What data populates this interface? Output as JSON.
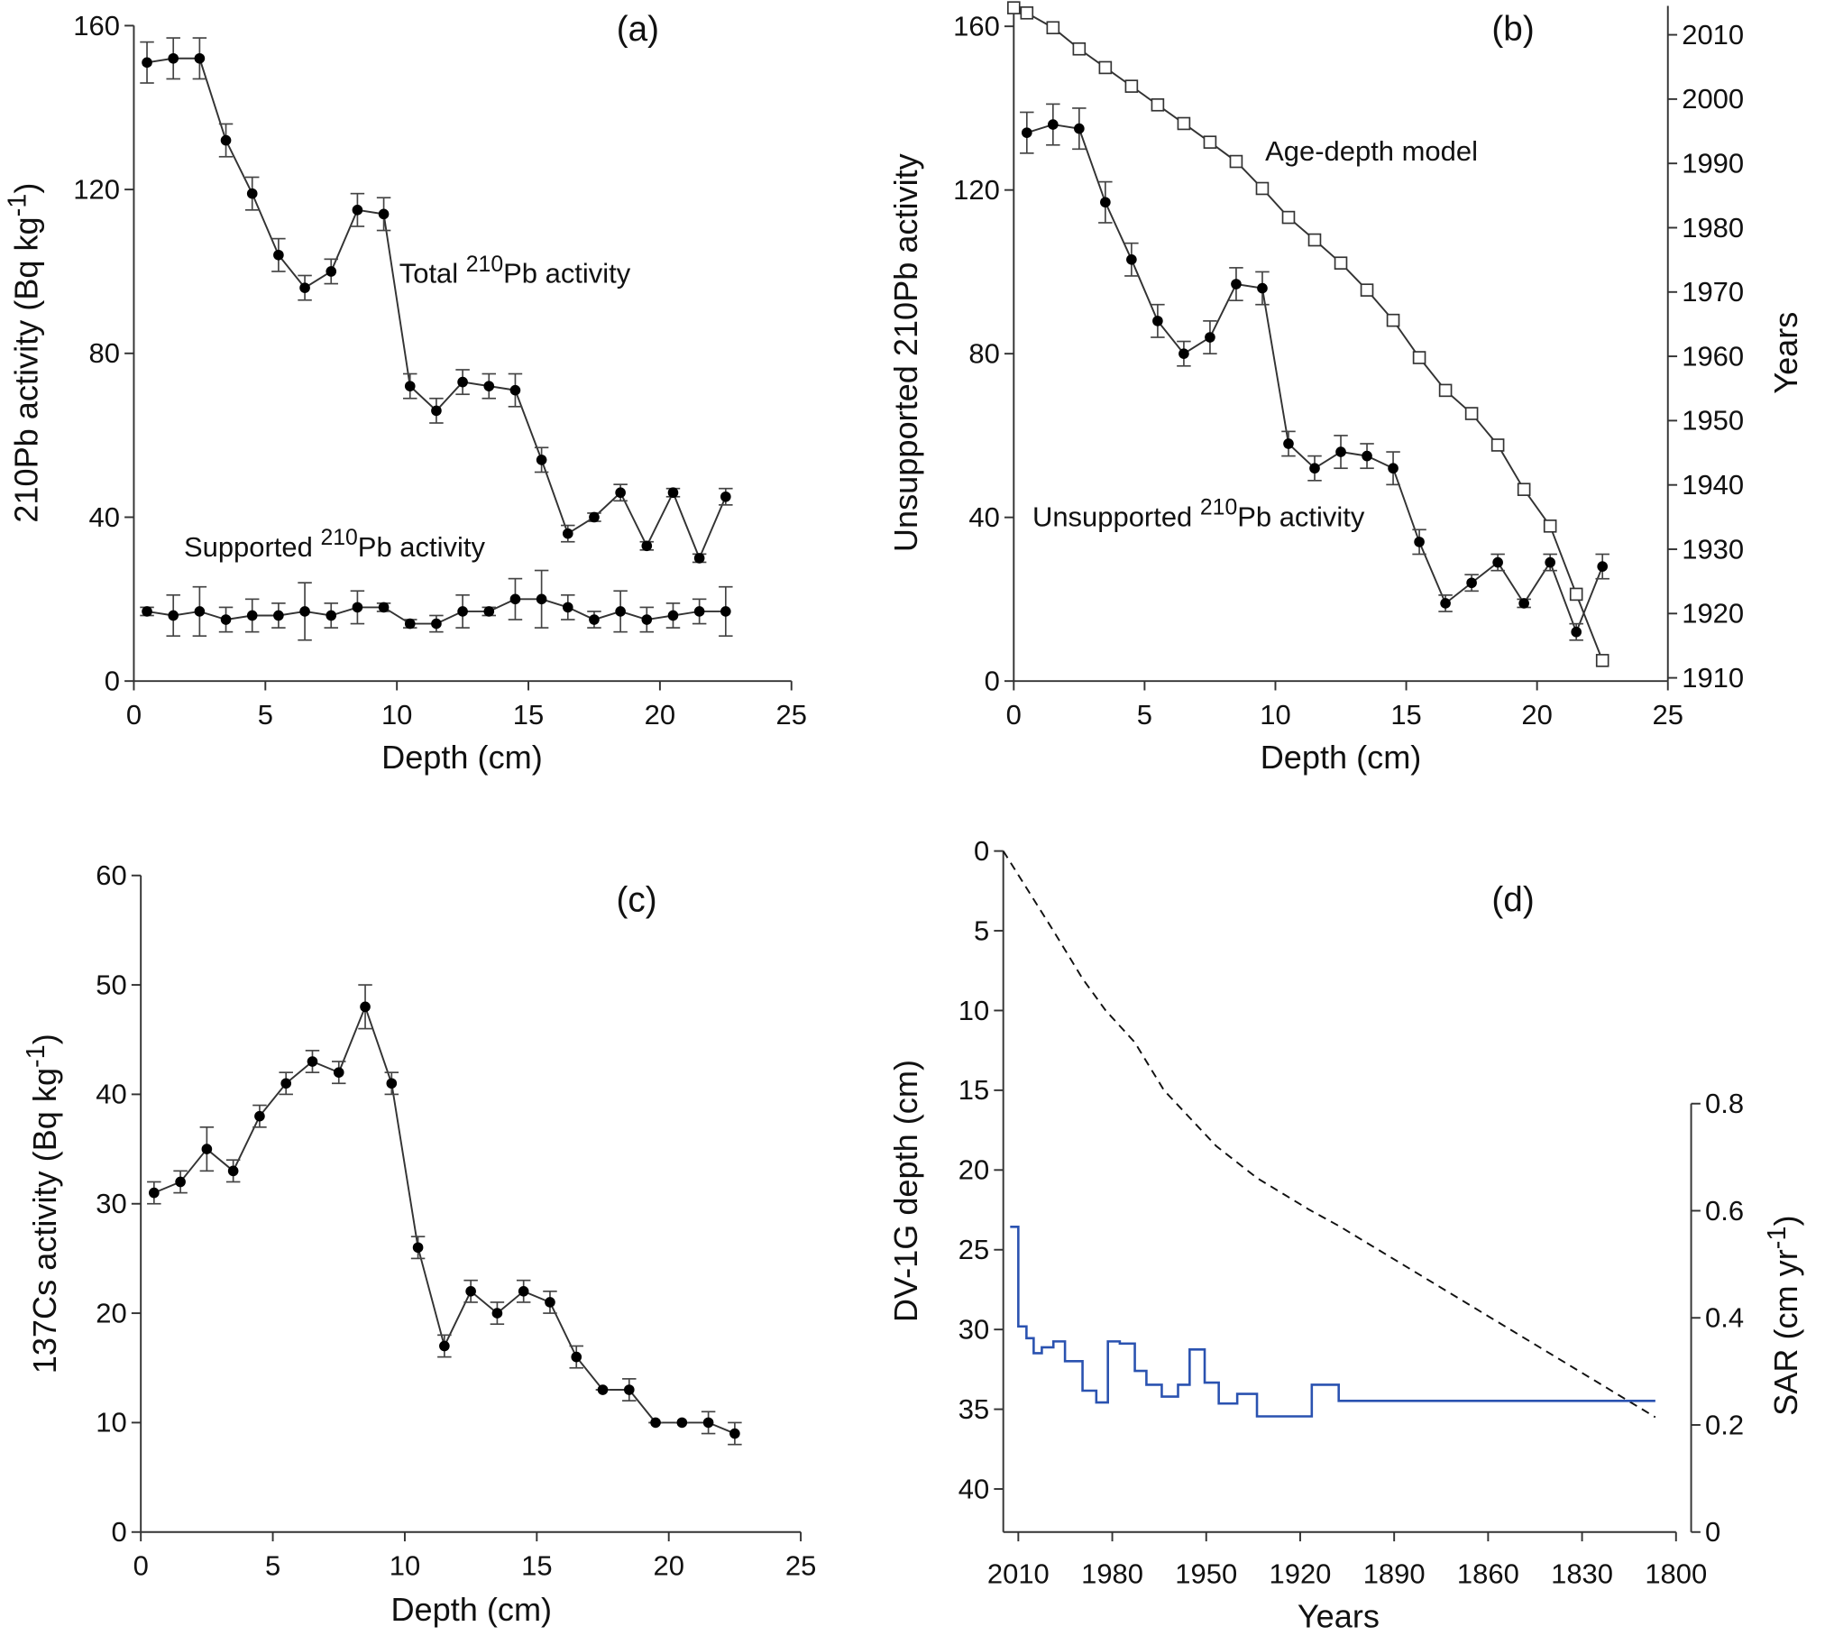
{
  "chart_data": [
    {
      "type": "line",
      "panel_label": "(a)",
      "xlabel": "Depth (cm)",
      "ylabel": [
        "210Pb activity (Bq kg",
        "-1",
        ")"
      ],
      "xlim": [
        0,
        25
      ],
      "xticks": [
        0,
        5,
        10,
        15,
        20,
        25
      ],
      "ylim": [
        0,
        160
      ],
      "yticks": [
        0,
        40,
        80,
        120,
        160
      ],
      "series": [
        {
          "name": [
            "Total ",
            "210",
            "Pb activity"
          ],
          "color": "#333333",
          "marker": "circle",
          "x": [
            0.5,
            1.5,
            2.5,
            3.5,
            4.5,
            5.5,
            6.5,
            7.5,
            8.5,
            9.5,
            10.5,
            11.5,
            12.5,
            13.5,
            14.5,
            15.5,
            16.5,
            17.5,
            18.5,
            19.5,
            20.5,
            21.5,
            22.5
          ],
          "values": [
            151,
            152,
            152,
            132,
            119,
            104,
            96,
            100,
            115,
            114,
            72,
            66,
            73,
            72,
            71,
            54,
            36,
            40,
            46,
            33,
            46,
            30,
            45
          ],
          "errors": [
            5,
            5,
            5,
            4,
            4,
            4,
            3,
            3,
            4,
            4,
            3,
            3,
            3,
            3,
            4,
            3,
            2,
            1,
            2,
            1,
            1,
            1,
            2
          ]
        },
        {
          "name": [
            "Supported ",
            "210",
            "Pb activity"
          ],
          "color": "#333333",
          "marker": "circle",
          "x": [
            0.5,
            1.5,
            2.5,
            3.5,
            4.5,
            5.5,
            6.5,
            7.5,
            8.5,
            9.5,
            10.5,
            11.5,
            12.5,
            13.5,
            14.5,
            15.5,
            16.5,
            17.5,
            18.5,
            19.5,
            20.5,
            21.5,
            22.5
          ],
          "values": [
            17,
            16,
            17,
            15,
            16,
            16,
            17,
            16,
            18,
            18,
            14,
            14,
            17,
            17,
            20,
            20,
            18,
            15,
            17,
            15,
            16,
            17,
            17
          ],
          "errors": [
            1,
            5,
            6,
            3,
            4,
            3,
            7,
            3,
            4,
            1,
            1,
            2,
            4,
            1,
            5,
            7,
            3,
            2,
            5,
            3,
            3,
            3,
            6
          ]
        }
      ]
    },
    {
      "type": "line",
      "panel_label": "(b)",
      "xlabel": "Depth (cm)",
      "ylabel": "Unsupported 210Pb activity",
      "y2label": "Years",
      "xlim": [
        0,
        25
      ],
      "xticks": [
        0,
        5,
        10,
        15,
        20,
        25
      ],
      "ylim": [
        0,
        165
      ],
      "yticks": [
        0,
        40,
        80,
        120,
        160
      ],
      "y2lim": [
        1909.5,
        2014.5
      ],
      "y2ticks": [
        1910,
        1920,
        1930,
        1940,
        1950,
        1960,
        1970,
        1980,
        1990,
        2000,
        2010
      ],
      "series": [
        {
          "name": [
            "Age-depth model"
          ],
          "color": "#333333",
          "marker": "square",
          "axis": "y2",
          "x": [
            0,
            0.5,
            1.5,
            2.5,
            3.5,
            4.5,
            5.5,
            6.5,
            7.5,
            8.5,
            9.5,
            10.5,
            11.5,
            12.5,
            13.5,
            14.5,
            15.5,
            16.5,
            17.5,
            18.5,
            19.5,
            20.5,
            21.5,
            22.5
          ],
          "values": [
            2014.2,
            2013.4,
            2011.1,
            2007.8,
            2004.9,
            2002.0,
            1999.1,
            1996.2,
            1993.3,
            1990.3,
            1986.1,
            1981.6,
            1978.1,
            1974.5,
            1970.3,
            1965.6,
            1959.8,
            1954.7,
            1951.1,
            1946.2,
            1939.3,
            1933.6,
            1923.0,
            1912.7
          ]
        },
        {
          "name": [
            "Unsupported ",
            "210",
            "Pb activity"
          ],
          "color": "#333333",
          "marker": "circle",
          "x": [
            0.5,
            1.5,
            2.5,
            3.5,
            4.5,
            5.5,
            6.5,
            7.5,
            8.5,
            9.5,
            10.5,
            11.5,
            12.5,
            13.5,
            14.5,
            15.5,
            16.5,
            17.5,
            18.5,
            19.5,
            20.5,
            21.5,
            22.5
          ],
          "values": [
            134,
            136,
            135,
            117,
            103,
            88,
            80,
            84,
            97,
            96,
            58,
            52,
            56,
            55,
            52,
            34,
            19,
            24,
            29,
            19,
            29,
            12,
            28
          ],
          "errors": [
            5,
            5,
            5,
            5,
            4,
            4,
            3,
            4,
            4,
            4,
            3,
            3,
            4,
            3,
            4,
            3,
            2,
            2,
            2,
            1,
            2,
            2,
            3
          ]
        }
      ]
    },
    {
      "type": "line",
      "panel_label": "(c)",
      "xlabel": "Depth (cm)",
      "ylabel": [
        "137Cs activity (Bq kg",
        "-1",
        ")"
      ],
      "xlim": [
        0,
        25
      ],
      "xticks": [
        0,
        5,
        10,
        15,
        20,
        25
      ],
      "ylim": [
        0,
        60
      ],
      "yticks": [
        0,
        10,
        20,
        30,
        40,
        50,
        60
      ],
      "series": [
        {
          "color": "#333333",
          "marker": "circle",
          "x": [
            0.5,
            1.5,
            2.5,
            3.5,
            4.5,
            5.5,
            6.5,
            7.5,
            8.5,
            9.5,
            10.5,
            11.5,
            12.5,
            13.5,
            14.5,
            15.5,
            16.5,
            17.5,
            18.5,
            19.5,
            20.5,
            21.5,
            22.5
          ],
          "values": [
            31,
            32,
            35,
            33,
            38,
            41,
            43,
            42,
            48,
            41,
            26,
            17,
            22,
            20,
            22,
            21,
            16,
            13,
            13,
            10,
            10,
            10,
            9
          ],
          "errors": [
            1,
            1,
            2,
            1,
            1,
            1,
            1,
            1,
            2,
            1,
            1,
            1,
            1,
            1,
            1,
            1,
            1,
            0,
            1,
            0,
            0,
            1,
            1
          ]
        }
      ]
    },
    {
      "type": "line",
      "panel_label": "(d)",
      "xlabel": "Years",
      "ylabel": "DV-1G depth (cm)",
      "y2label": [
        "SAR (cm yr",
        "-1",
        ")"
      ],
      "xlim": [
        2014.8,
        1800
      ],
      "xticks": [
        2010,
        1980,
        1950,
        1920,
        1890,
        1860,
        1830,
        1800
      ],
      "ylim": [
        42.7,
        0
      ],
      "yticks": [
        0,
        5,
        10,
        15,
        20,
        25,
        30,
        35,
        40
      ],
      "y2lim": [
        0,
        0.8
      ],
      "y2ticks": [
        0,
        0.2,
        0.4,
        0.6,
        0.8
      ],
      "series": [
        {
          "color": "#111111",
          "marker": "none",
          "dash": true,
          "x": [
            2014.8,
            1998.8,
            1989.5,
            1982.1,
            1972.8,
            1963.5,
            1946.8,
            1933.8,
            1917.0,
            1907.7,
            1806.6
          ],
          "values": [
            0,
            5,
            8,
            10,
            12,
            15,
            18.5,
            20.5,
            22.5,
            23.5,
            35.5
          ]
        },
        {
          "color": "#2a52b0",
          "marker": "none",
          "step": true,
          "axis": "y2",
          "x": [
            2012.6,
            2010.0,
            2007.4,
            2005.1,
            2002.5,
            1998.8,
            1995.1,
            1989.5,
            1985.1,
            1981.4,
            1977.6,
            1972.8,
            1969.1,
            1964.2,
            1959.0,
            1955.3,
            1950.5,
            1946.0,
            1940.1,
            1933.8,
            1916.3,
            1907.7,
            1806.6
          ],
          "values": [
            0.57,
            0.384,
            0.362,
            0.334,
            0.345,
            0.356,
            0.319,
            0.264,
            0.242,
            0.356,
            0.352,
            0.301,
            0.275,
            0.253,
            0.275,
            0.341,
            0.279,
            0.24,
            0.258,
            0.216,
            0.275,
            0.245,
            0.245
          ]
        }
      ]
    }
  ]
}
